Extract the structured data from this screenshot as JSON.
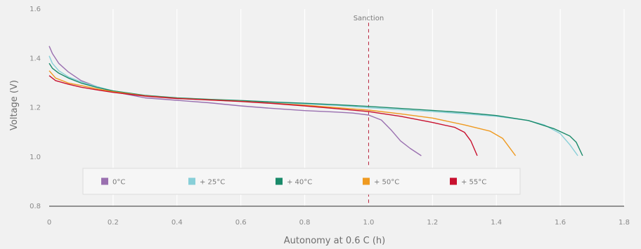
{
  "chart_data": {
    "type": "line",
    "title": "",
    "xlabel": "Autonomy at 0.6 C (h)",
    "ylabel": "Voltage (V)",
    "xlim": [
      0,
      1.8
    ],
    "ylim": [
      0.8,
      1.6
    ],
    "x_ticks": [
      "0",
      "0.2",
      "0.4",
      "0.6",
      "0.8",
      "1.0",
      "1.2",
      "1.4",
      "1.6",
      "1.8"
    ],
    "y_ticks": [
      "0.8",
      "1.0",
      "1.2",
      "1.4",
      "1.6"
    ],
    "grid": "vertical",
    "legend_position": "bottom",
    "annotation": {
      "label": "Sanction",
      "x": 1.0
    },
    "series": [
      {
        "name": "0°C",
        "color": "#9a70b0",
        "points": [
          [
            0,
            1.45
          ],
          [
            0.01,
            1.42
          ],
          [
            0.03,
            1.38
          ],
          [
            0.06,
            1.345
          ],
          [
            0.1,
            1.31
          ],
          [
            0.15,
            1.285
          ],
          [
            0.2,
            1.265
          ],
          [
            0.3,
            1.24
          ],
          [
            0.4,
            1.23
          ],
          [
            0.5,
            1.22
          ],
          [
            0.6,
            1.207
          ],
          [
            0.7,
            1.197
          ],
          [
            0.8,
            1.188
          ],
          [
            0.9,
            1.182
          ],
          [
            0.95,
            1.178
          ],
          [
            1.0,
            1.17
          ],
          [
            1.04,
            1.15
          ],
          [
            1.07,
            1.11
          ],
          [
            1.1,
            1.065
          ],
          [
            1.13,
            1.035
          ],
          [
            1.165,
            1.005
          ]
        ]
      },
      {
        "name": "+ 25°C",
        "color": "#88cfd8",
        "points": [
          [
            0,
            1.41
          ],
          [
            0.01,
            1.38
          ],
          [
            0.03,
            1.35
          ],
          [
            0.06,
            1.325
          ],
          [
            0.1,
            1.305
          ],
          [
            0.15,
            1.285
          ],
          [
            0.2,
            1.268
          ],
          [
            0.3,
            1.248
          ],
          [
            0.4,
            1.238
          ],
          [
            0.5,
            1.232
          ],
          [
            0.6,
            1.226
          ],
          [
            0.7,
            1.221
          ],
          [
            0.8,
            1.215
          ],
          [
            0.9,
            1.209
          ],
          [
            1.0,
            1.2
          ],
          [
            1.1,
            1.192
          ],
          [
            1.2,
            1.184
          ],
          [
            1.3,
            1.175
          ],
          [
            1.4,
            1.165
          ],
          [
            1.5,
            1.148
          ],
          [
            1.55,
            1.13
          ],
          [
            1.6,
            1.095
          ],
          [
            1.63,
            1.05
          ],
          [
            1.655,
            1.005
          ]
        ]
      },
      {
        "name": "+ 40°C",
        "color": "#1a8a6a",
        "points": [
          [
            0,
            1.38
          ],
          [
            0.01,
            1.36
          ],
          [
            0.03,
            1.34
          ],
          [
            0.06,
            1.32
          ],
          [
            0.1,
            1.3
          ],
          [
            0.15,
            1.282
          ],
          [
            0.2,
            1.268
          ],
          [
            0.3,
            1.25
          ],
          [
            0.4,
            1.24
          ],
          [
            0.5,
            1.234
          ],
          [
            0.6,
            1.229
          ],
          [
            0.7,
            1.223
          ],
          [
            0.8,
            1.218
          ],
          [
            0.9,
            1.212
          ],
          [
            1.0,
            1.205
          ],
          [
            1.1,
            1.197
          ],
          [
            1.2,
            1.189
          ],
          [
            1.3,
            1.18
          ],
          [
            1.4,
            1.168
          ],
          [
            1.5,
            1.148
          ],
          [
            1.58,
            1.115
          ],
          [
            1.63,
            1.085
          ],
          [
            1.65,
            1.06
          ],
          [
            1.67,
            1.005
          ]
        ]
      },
      {
        "name": "+ 50°C",
        "color": "#ef9a20",
        "points": [
          [
            0,
            1.35
          ],
          [
            0.02,
            1.32
          ],
          [
            0.06,
            1.3
          ],
          [
            0.1,
            1.29
          ],
          [
            0.15,
            1.276
          ],
          [
            0.2,
            1.265
          ],
          [
            0.3,
            1.248
          ],
          [
            0.4,
            1.238
          ],
          [
            0.5,
            1.232
          ],
          [
            0.6,
            1.226
          ],
          [
            0.7,
            1.218
          ],
          [
            0.8,
            1.21
          ],
          [
            0.9,
            1.2
          ],
          [
            1.0,
            1.19
          ],
          [
            1.1,
            1.175
          ],
          [
            1.2,
            1.158
          ],
          [
            1.3,
            1.13
          ],
          [
            1.38,
            1.105
          ],
          [
            1.42,
            1.075
          ],
          [
            1.44,
            1.04
          ],
          [
            1.46,
            1.005
          ]
        ]
      },
      {
        "name": "+ 55°C",
        "color": "#c8102e",
        "points": [
          [
            0,
            1.33
          ],
          [
            0.02,
            1.31
          ],
          [
            0.06,
            1.295
          ],
          [
            0.1,
            1.283
          ],
          [
            0.15,
            1.272
          ],
          [
            0.2,
            1.262
          ],
          [
            0.3,
            1.247
          ],
          [
            0.4,
            1.237
          ],
          [
            0.5,
            1.231
          ],
          [
            0.6,
            1.225
          ],
          [
            0.7,
            1.217
          ],
          [
            0.8,
            1.207
          ],
          [
            0.9,
            1.196
          ],
          [
            1.0,
            1.184
          ],
          [
            1.1,
            1.165
          ],
          [
            1.2,
            1.14
          ],
          [
            1.27,
            1.12
          ],
          [
            1.3,
            1.1
          ],
          [
            1.32,
            1.065
          ],
          [
            1.34,
            1.005
          ]
        ]
      }
    ]
  }
}
